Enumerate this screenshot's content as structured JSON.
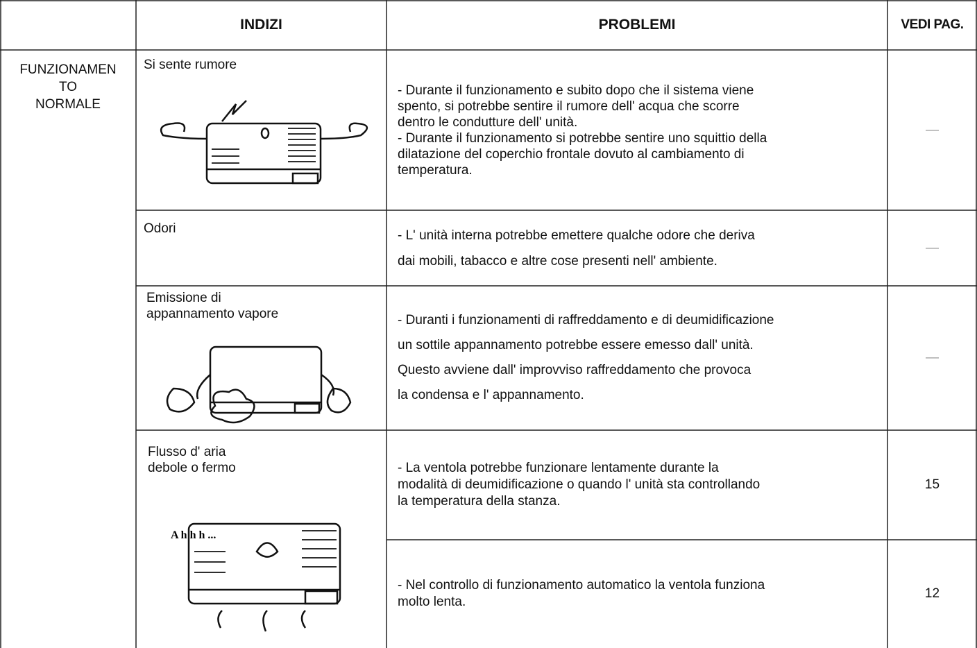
{
  "header": {
    "columns": [
      "INDIZI",
      "PROBLEMI",
      "VEDI PAG."
    ]
  },
  "category": [
    "FUNZIONAMEN",
    "TO",
    "NORMALE"
  ],
  "rows": [
    {
      "indizi": [
        "Si sente rumore"
      ],
      "problems": [
        {
          "lines": [
            "- Durante il funzionamento e subito dopo che il sistema viene",
            "spento, si potrebbe sentire il rumore dell' acqua che scorre",
            "dentro le condutture dell' unità.",
            "- Durante il funzionamento si potrebbe sentire uno squittio della",
            "dilatazione del coperchio frontale dovuto al cambiamento di",
            "temperatura."
          ],
          "page": "—"
        }
      ]
    },
    {
      "indizi": [
        "Odori"
      ],
      "problems": [
        {
          "lines": [
            "- L' unità interna potrebbe emettere qualche odore che deriva",
            "dai mobili, tabacco e altre cose presenti nell' ambiente."
          ],
          "page": "—"
        }
      ]
    },
    {
      "indizi": [
        "Emissione di",
        "appannamento vapore"
      ],
      "problems": [
        {
          "lines": [
            "- Duranti i funzionamenti di raffreddamento e di deumidificazione",
            "un sottile appannamento potrebbe essere emesso dall' unità.",
            "Questo avviene dall' improvviso raffreddamento che provoca",
            "la condensa e l' appannamento."
          ],
          "page": "—"
        }
      ]
    },
    {
      "indizi": [
        "Flusso d' aria",
        "debole o fermo"
      ],
      "problems": [
        {
          "lines": [
            "- La ventola potrebbe funzionare lentamente durante la",
            "modalità di deumidificazione o quando l' unità sta controllando",
            "la temperatura della stanza."
          ],
          "page": 15
        },
        {
          "lines": [
            "- Nel controllo di funzionamento automatico la ventola funziona",
            "molto lenta."
          ],
          "page": 12
        }
      ]
    }
  ],
  "illustration_text": "A h h h ..."
}
